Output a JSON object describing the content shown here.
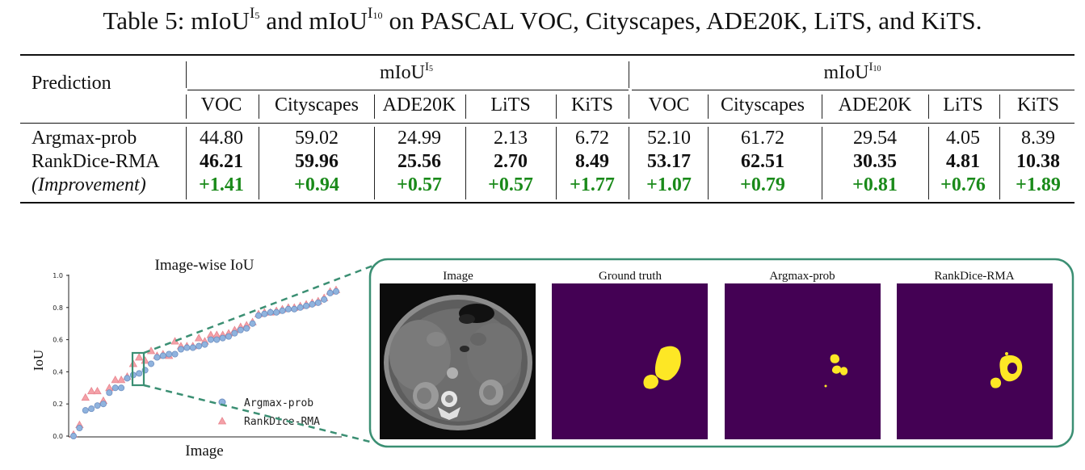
{
  "caption": {
    "prefix": "Table 5: mIoU",
    "sup1": "I",
    "sub1": "5",
    "mid": " and mIoU",
    "sup2": "I",
    "sub2": "10",
    "suffix": " on PASCAL VOC, Cityscapes, ADE20K, LiTS, and KiTS."
  },
  "table": {
    "prediction_header": "Prediction",
    "group1": {
      "base": "mIoU",
      "sup": "I",
      "sub": "5"
    },
    "group2": {
      "base": "mIoU",
      "sup": "I",
      "sub": "10"
    },
    "columns": [
      "VOC",
      "Cityscapes",
      "ADE20K",
      "LiTS",
      "KiTS",
      "VOC",
      "Cityscapes",
      "ADE20K",
      "LiTS",
      "KiTS"
    ],
    "rows": [
      {
        "label": "Argmax-prob",
        "values": [
          "44.80",
          "59.02",
          "24.99",
          "2.13",
          "6.72",
          "52.10",
          "61.72",
          "29.54",
          "4.05",
          "8.39"
        ]
      },
      {
        "label": "RankDice-RMA",
        "values": [
          "46.21",
          "59.96",
          "25.56",
          "2.70",
          "8.49",
          "53.17",
          "62.51",
          "30.35",
          "4.81",
          "10.38"
        ]
      },
      {
        "label": "(Improvement)",
        "values": [
          "+1.41",
          "+0.94",
          "+0.57",
          "+0.57",
          "+1.77",
          "+1.07",
          "+0.79",
          "+0.81",
          "+0.76",
          "+1.89"
        ]
      }
    ]
  },
  "colors": {
    "improvement": "#1a8a1a",
    "argmax": "#8fb3de",
    "rankdice": "#f4a1a8",
    "highlight_box": "#3b8f73",
    "mask_bg": "#440154",
    "mask_fg": "#fde725"
  },
  "chart_data": {
    "type": "scatter",
    "title": "Image-wise IoU",
    "xlabel": "Image",
    "ylabel": "IoU",
    "ylim": [
      0.0,
      1.0
    ],
    "yticks": [
      "0.0",
      "0.2",
      "0.4",
      "0.6",
      "0.8",
      "1.0"
    ],
    "series": [
      {
        "name": "Argmax-prob",
        "values": [
          0.0,
          0.05,
          0.16,
          0.17,
          0.19,
          0.2,
          0.27,
          0.3,
          0.3,
          0.36,
          0.38,
          0.39,
          0.41,
          0.45,
          0.49,
          0.5,
          0.51,
          0.51,
          0.54,
          0.55,
          0.55,
          0.56,
          0.57,
          0.6,
          0.6,
          0.61,
          0.62,
          0.64,
          0.66,
          0.67,
          0.7,
          0.75,
          0.76,
          0.77,
          0.77,
          0.78,
          0.79,
          0.79,
          0.8,
          0.81,
          0.82,
          0.83,
          0.85,
          0.89,
          0.9
        ]
      },
      {
        "name": "RankDice-RMA",
        "values": [
          0.01,
          0.07,
          0.24,
          0.28,
          0.28,
          0.22,
          0.3,
          0.35,
          0.35,
          0.37,
          0.45,
          0.49,
          0.47,
          0.53,
          0.5,
          0.51,
          0.5,
          0.59,
          0.56,
          0.56,
          0.56,
          0.61,
          0.59,
          0.63,
          0.63,
          0.63,
          0.64,
          0.66,
          0.68,
          0.69,
          0.71,
          0.76,
          0.77,
          0.77,
          0.78,
          0.79,
          0.8,
          0.8,
          0.81,
          0.82,
          0.83,
          0.84,
          0.86,
          0.9,
          0.91
        ]
      }
    ],
    "legend": {
      "placement": "bottom-right",
      "entries": [
        "Argmax-prob",
        "RankDice-RMA"
      ]
    }
  },
  "panels": {
    "titles": [
      "Image",
      "Ground truth",
      "Argmax-prob",
      "RankDice-RMA"
    ]
  }
}
